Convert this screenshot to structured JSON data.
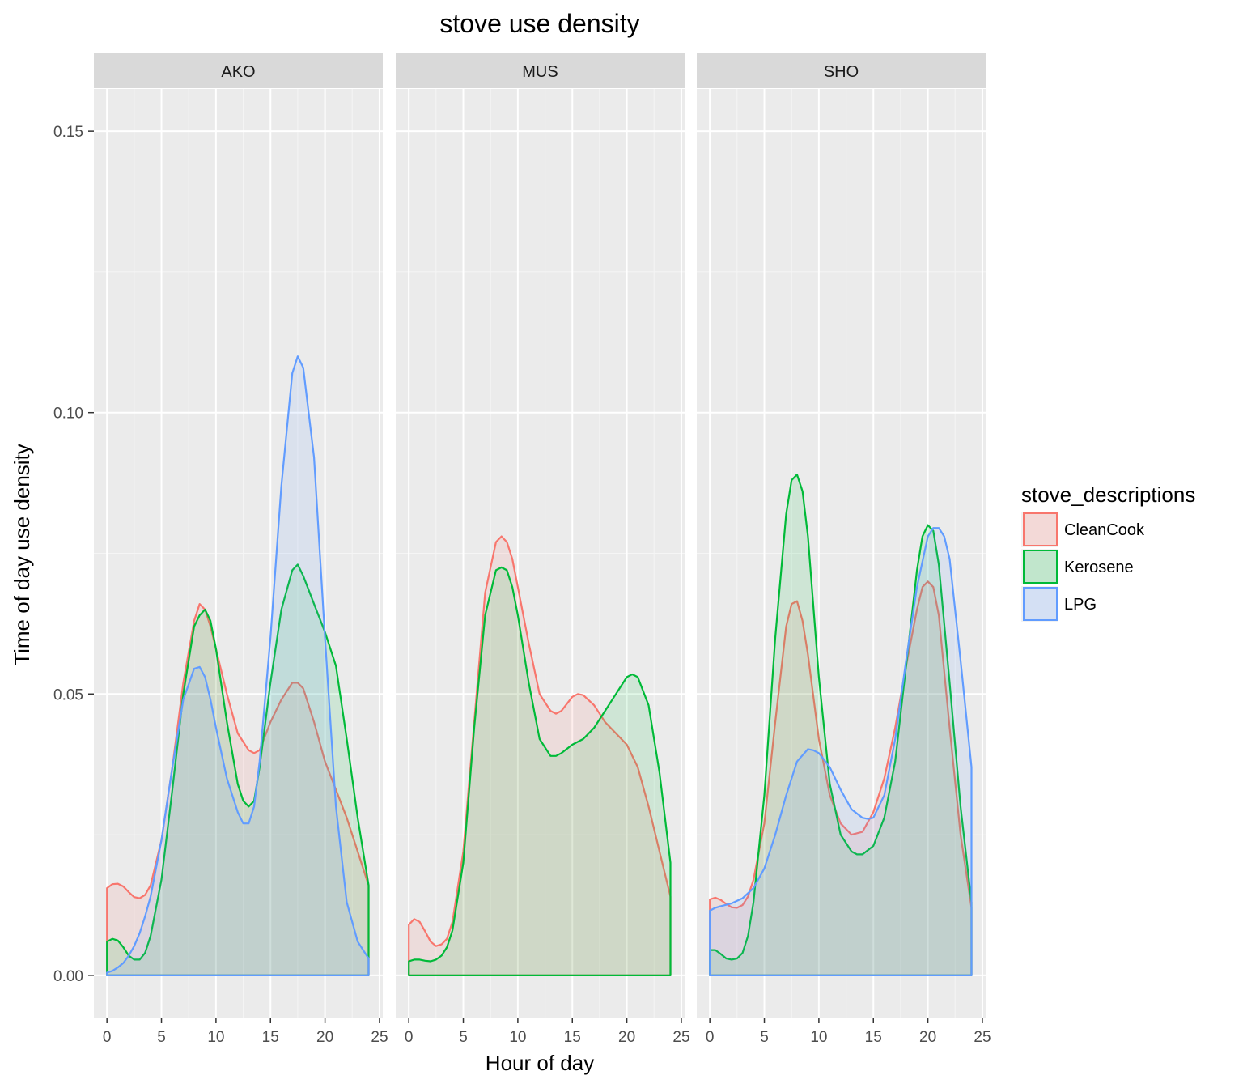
{
  "chart_data": {
    "type": "area",
    "title": "stove use density",
    "xlabel": "Hour of day",
    "ylabel": "Time of day use density",
    "xlim": [
      -1.2,
      25.3
    ],
    "ylim": [
      -0.0075,
      0.1575
    ],
    "x_ticks": [
      0,
      5,
      10,
      15,
      20,
      25
    ],
    "y_ticks": [
      0.0,
      0.05,
      0.1,
      0.15
    ],
    "y_tick_labels": [
      "0.00",
      "0.05",
      "0.10",
      "0.15"
    ],
    "grid": true,
    "facet_strip_color": "#d9d9d9",
    "panel_background": "#ebebeb",
    "legend": {
      "title": "stove_descriptions",
      "position": "right",
      "entries": [
        "CleanCook",
        "Kerosene",
        "LPG"
      ]
    },
    "series_colors": {
      "CleanCook": "#f8766d",
      "Kerosene": "#00ba38",
      "LPG": "#619cff"
    },
    "panels": [
      {
        "label": "AKO",
        "series": [
          {
            "name": "CleanCook",
            "x": [
              0,
              0.5,
              1,
              1.5,
              2,
              2.5,
              3,
              3.5,
              4,
              5,
              6,
              7,
              8,
              8.5,
              9,
              9.5,
              10,
              11,
              12,
              13,
              13.5,
              14,
              15,
              16,
              17,
              17.5,
              18,
              19,
              20,
              21,
              22,
              23,
              24
            ],
            "y": [
              0.0155,
              0.0162,
              0.0163,
              0.0158,
              0.0148,
              0.0139,
              0.0137,
              0.0143,
              0.016,
              0.024,
              0.037,
              0.052,
              0.063,
              0.066,
              0.065,
              0.062,
              0.058,
              0.05,
              0.043,
              0.04,
              0.0395,
              0.04,
              0.045,
              0.049,
              0.052,
              0.052,
              0.051,
              0.045,
              0.038,
              0.033,
              0.028,
              0.022,
              0.016
            ]
          },
          {
            "name": "Kerosene",
            "x": [
              0,
              0.5,
              1,
              1.5,
              2,
              2.5,
              3,
              3.5,
              4,
              5,
              6,
              7,
              8,
              8.5,
              9,
              9.5,
              10,
              11,
              12,
              12.5,
              13,
              13.5,
              14,
              15,
              16,
              17,
              17.5,
              18,
              19,
              20,
              21,
              22,
              23,
              24
            ],
            "y": [
              0.006,
              0.0065,
              0.0062,
              0.005,
              0.0035,
              0.0028,
              0.0028,
              0.004,
              0.007,
              0.017,
              0.033,
              0.05,
              0.062,
              0.064,
              0.065,
              0.063,
              0.058,
              0.045,
              0.034,
              0.031,
              0.03,
              0.031,
              0.037,
              0.052,
              0.065,
              0.072,
              0.073,
              0.071,
              0.066,
              0.061,
              0.055,
              0.042,
              0.028,
              0.016
            ]
          },
          {
            "name": "LPG",
            "x": [
              0,
              0.5,
              1,
              1.5,
              2,
              2.5,
              3,
              3.5,
              4,
              5,
              6,
              7,
              8,
              8.5,
              9,
              9.5,
              10,
              11,
              12,
              12.5,
              13,
              13.5,
              14,
              15,
              16,
              17,
              17.5,
              18,
              19,
              20,
              21,
              22,
              23,
              24
            ],
            "y": [
              0.0005,
              0.0008,
              0.0014,
              0.0022,
              0.0035,
              0.0052,
              0.0075,
              0.0105,
              0.014,
              0.024,
              0.037,
              0.049,
              0.0545,
              0.0548,
              0.053,
              0.049,
              0.044,
              0.035,
              0.029,
              0.027,
              0.027,
              0.03,
              0.038,
              0.06,
              0.087,
              0.107,
              0.11,
              0.108,
              0.092,
              0.06,
              0.03,
              0.013,
              0.006,
              0.003
            ]
          }
        ]
      },
      {
        "label": "MUS",
        "series": [
          {
            "name": "CleanCook",
            "x": [
              0,
              0.5,
              1,
              1.5,
              2,
              2.5,
              3,
              3.5,
              4,
              5,
              6,
              7,
              8,
              8.5,
              9,
              9.5,
              10,
              11,
              12,
              13,
              13.5,
              14,
              15,
              15.5,
              16,
              17,
              18,
              19,
              20,
              21,
              22,
              23,
              24
            ],
            "y": [
              0.009,
              0.01,
              0.0095,
              0.0078,
              0.006,
              0.0052,
              0.0055,
              0.0065,
              0.0095,
              0.022,
              0.045,
              0.068,
              0.077,
              0.078,
              0.077,
              0.074,
              0.069,
              0.059,
              0.05,
              0.047,
              0.0465,
              0.047,
              0.0495,
              0.05,
              0.0498,
              0.048,
              0.045,
              0.043,
              0.041,
              0.037,
              0.03,
              0.022,
              0.014
            ]
          },
          {
            "name": "Kerosene",
            "x": [
              0,
              0.5,
              1,
              1.5,
              2,
              2.5,
              3,
              3.5,
              4,
              5,
              6,
              7,
              8,
              8.5,
              9,
              9.5,
              10,
              11,
              12,
              13,
              13.5,
              14,
              15,
              16,
              17,
              18,
              19,
              20,
              20.5,
              21,
              22,
              23,
              24
            ],
            "y": [
              0.0025,
              0.0028,
              0.0028,
              0.0026,
              0.0025,
              0.0028,
              0.0035,
              0.005,
              0.008,
              0.02,
              0.044,
              0.064,
              0.072,
              0.0725,
              0.072,
              0.069,
              0.064,
              0.052,
              0.042,
              0.039,
              0.039,
              0.0395,
              0.041,
              0.042,
              0.044,
              0.047,
              0.05,
              0.053,
              0.0535,
              0.053,
              0.048,
              0.036,
              0.02
            ]
          }
        ]
      },
      {
        "label": "SHO",
        "series": [
          {
            "name": "CleanCook",
            "x": [
              0,
              0.5,
              1,
              1.5,
              2,
              2.5,
              3,
              3.5,
              4,
              5,
              6,
              7,
              7.5,
              8,
              8.5,
              9,
              10,
              11,
              12,
              13,
              14,
              15,
              16,
              17,
              18,
              19,
              19.5,
              20,
              20.5,
              21,
              22,
              23,
              24
            ],
            "y": [
              0.0135,
              0.0138,
              0.0134,
              0.0127,
              0.0121,
              0.012,
              0.0125,
              0.014,
              0.017,
              0.027,
              0.045,
              0.062,
              0.066,
              0.0665,
              0.063,
              0.057,
              0.042,
              0.032,
              0.027,
              0.025,
              0.0255,
              0.029,
              0.035,
              0.044,
              0.055,
              0.065,
              0.069,
              0.07,
              0.069,
              0.064,
              0.044,
              0.025,
              0.012
            ]
          },
          {
            "name": "Kerosene",
            "x": [
              0,
              0.5,
              1,
              1.5,
              2,
              2.5,
              3,
              3.5,
              4,
              5,
              6,
              7,
              7.5,
              8,
              8.5,
              9,
              10,
              11,
              12,
              13,
              13.5,
              14,
              15,
              16,
              17,
              18,
              19,
              19.5,
              20,
              20.5,
              21,
              22,
              23,
              24
            ],
            "y": [
              0.0045,
              0.0045,
              0.0038,
              0.003,
              0.0028,
              0.003,
              0.004,
              0.007,
              0.013,
              0.032,
              0.06,
              0.082,
              0.088,
              0.089,
              0.086,
              0.078,
              0.053,
              0.034,
              0.025,
              0.022,
              0.0215,
              0.0215,
              0.023,
              0.028,
              0.038,
              0.055,
              0.072,
              0.078,
              0.08,
              0.079,
              0.073,
              0.052,
              0.03,
              0.013
            ]
          },
          {
            "name": "LPG",
            "x": [
              0,
              0.5,
              1,
              2,
              3,
              4,
              5,
              6,
              7,
              8,
              9,
              9.5,
              10,
              11,
              12,
              13,
              14,
              14.5,
              15,
              16,
              17,
              18,
              19,
              20,
              20.5,
              21,
              21.5,
              22,
              23,
              24
            ],
            "y": [
              0.0115,
              0.012,
              0.0123,
              0.0128,
              0.0137,
              0.0155,
              0.019,
              0.025,
              0.032,
              0.038,
              0.0402,
              0.04,
              0.0395,
              0.037,
              0.033,
              0.0295,
              0.028,
              0.0278,
              0.028,
              0.032,
              0.042,
              0.056,
              0.069,
              0.078,
              0.0795,
              0.0795,
              0.078,
              0.074,
              0.056,
              0.037
            ]
          }
        ]
      }
    ]
  }
}
